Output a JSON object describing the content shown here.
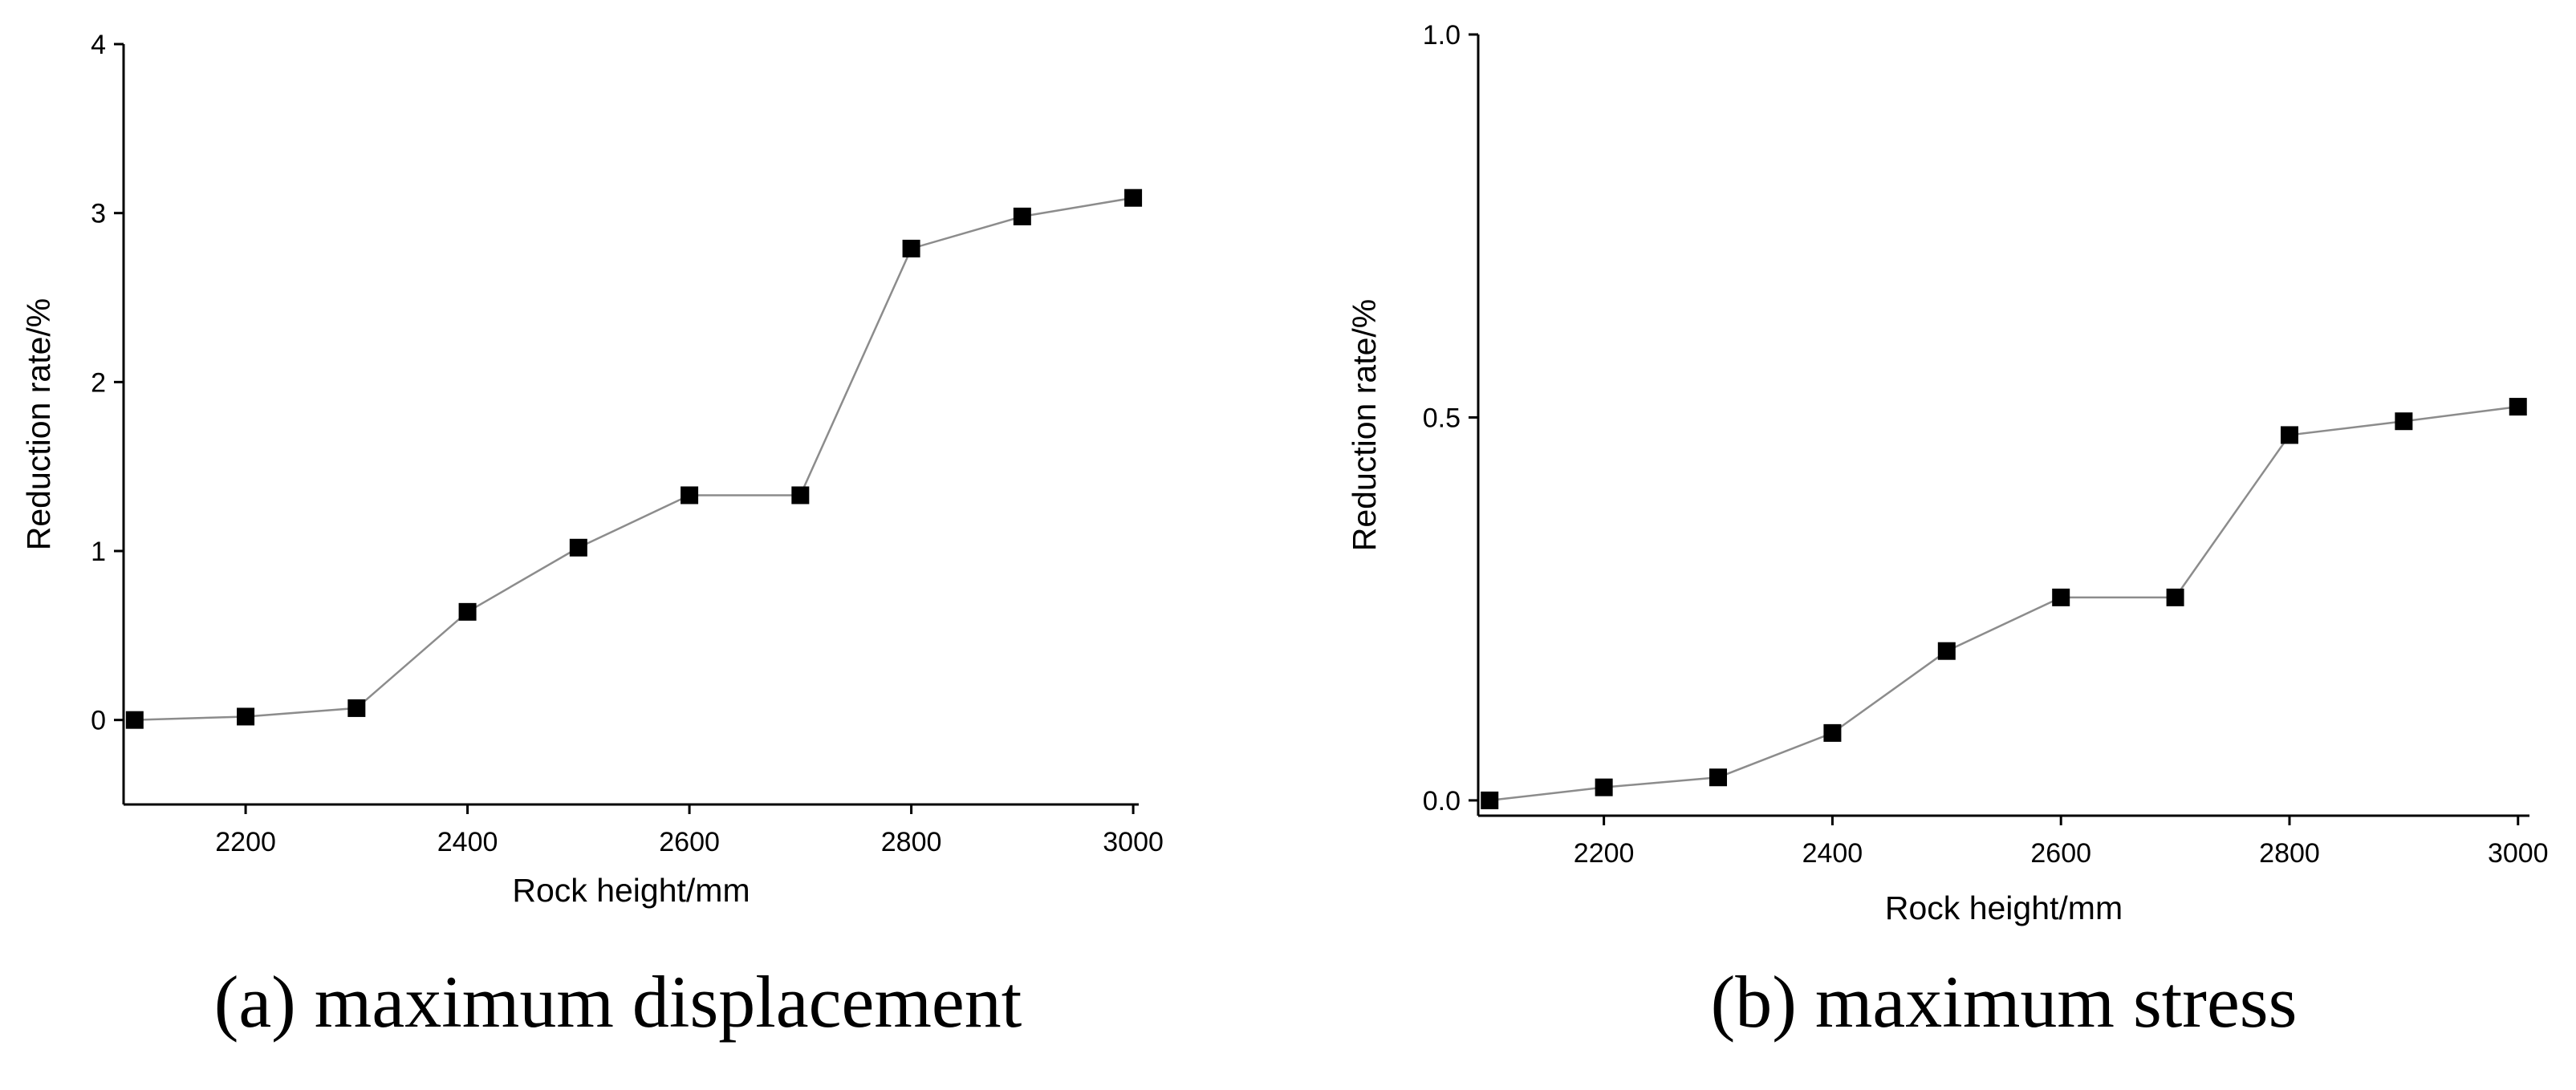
{
  "chart_data": [
    {
      "type": "line",
      "caption": "(a) maximum displacement",
      "x_label": "Rock height/mm",
      "y_label": "Reduction rate/%",
      "x": [
        2100,
        2200,
        2300,
        2400,
        2500,
        2600,
        2700,
        2800,
        2900,
        3000
      ],
      "series": [
        {
          "values": [
            0,
            0.02,
            0.07,
            0.64,
            1.02,
            1.33,
            1.33,
            2.79,
            2.98,
            3.09
          ],
          "color": "#000000",
          "line_color": "#8c8c8c"
        }
      ],
      "xlim": [
        2090,
        3005
      ],
      "xticks": [
        2200,
        2400,
        2600,
        2800,
        3000
      ],
      "ylim": [
        -0.5,
        4
      ],
      "yticks": [
        0,
        1,
        2,
        3,
        4
      ]
    },
    {
      "type": "line",
      "caption": "(b) maximum stress",
      "x_label": "Rock height/mm",
      "y_label": "Reduction rate/%",
      "x": [
        2100,
        2200,
        2300,
        2400,
        2500,
        2600,
        2700,
        2800,
        2900,
        3000
      ],
      "series": [
        {
          "values": [
            0,
            0.017,
            0.03,
            0.088,
            0.195,
            0.265,
            0.265,
            0.477,
            0.495,
            0.514
          ],
          "color": "#000000",
          "line_color": "#8c8c8c"
        }
      ],
      "xlim": [
        2090,
        3010
      ],
      "xticks": [
        2200,
        2400,
        2600,
        2800,
        3000
      ],
      "ylim": [
        -0.02,
        1
      ],
      "yticks": [
        {
          "value": 0,
          "label": "0.0"
        },
        {
          "value": 0.5,
          "label": "0.5"
        },
        {
          "value": 1,
          "label": "1.0"
        }
      ]
    }
  ]
}
